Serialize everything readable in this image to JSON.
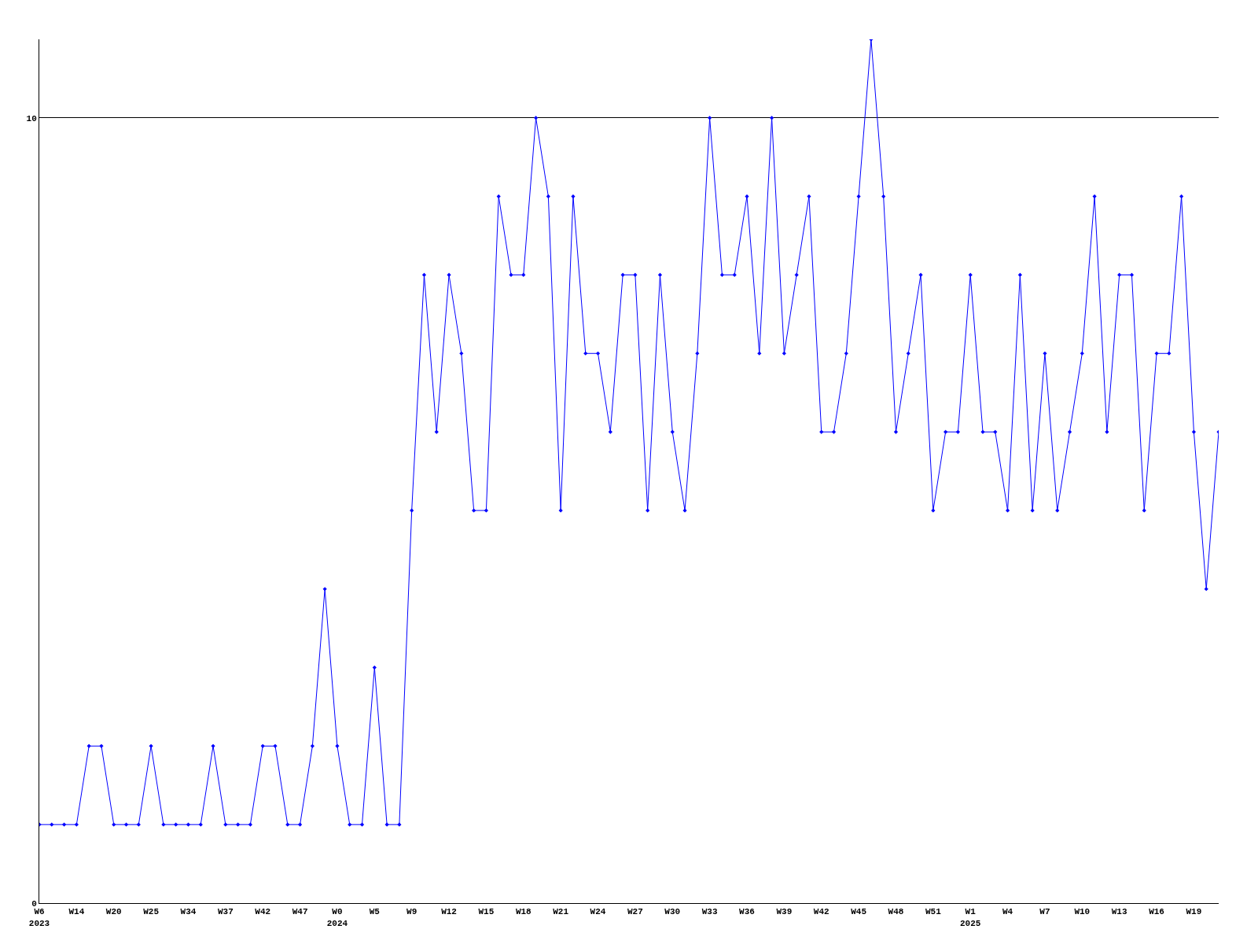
{
  "chart_data": {
    "type": "line",
    "categories": [
      "W6\n2023",
      null,
      null,
      "W14",
      null,
      null,
      "W20",
      null,
      null,
      "W25",
      null,
      null,
      "W34",
      null,
      null,
      "W37",
      null,
      null,
      "W42",
      null,
      null,
      "W47",
      null,
      null,
      "W0\n2024",
      null,
      null,
      "W5",
      null,
      null,
      "W9",
      null,
      null,
      "W12",
      null,
      null,
      "W15",
      null,
      null,
      "W18",
      null,
      null,
      "W21",
      null,
      null,
      "W24",
      null,
      null,
      "W27",
      null,
      null,
      "W30",
      null,
      null,
      "W33",
      null,
      null,
      "W36",
      null,
      null,
      "W39",
      null,
      null,
      "W42",
      null,
      null,
      "W45",
      null,
      null,
      "W48",
      null,
      null,
      "W51",
      null,
      null,
      "W1\n2025",
      null,
      null,
      "W4",
      null,
      null,
      "W7",
      null,
      null,
      "W10",
      null,
      null,
      "W13",
      null,
      null,
      "W16",
      null,
      null,
      "W19",
      null,
      null
    ],
    "series": [
      {
        "color": "#0000ff",
        "values": [
          1,
          1,
          1,
          1,
          2,
          2,
          1,
          1,
          1,
          2,
          1,
          1,
          1,
          1,
          2,
          1,
          1,
          1,
          2,
          2,
          1,
          1,
          2,
          4,
          2,
          1,
          1,
          3,
          1,
          1,
          5,
          8,
          6,
          8,
          7,
          5,
          5,
          9,
          8,
          8,
          10,
          9,
          5,
          9,
          7,
          7,
          6,
          8,
          8,
          5,
          8,
          6,
          5,
          7,
          10,
          8,
          8,
          9,
          7,
          10,
          7,
          8,
          9,
          6,
          6,
          7,
          9,
          11,
          9,
          6,
          7,
          8,
          5,
          6,
          6,
          8,
          6,
          6,
          5,
          8,
          5,
          7,
          5,
          6,
          7,
          9,
          6,
          8,
          8,
          5,
          7,
          7,
          9,
          6,
          4,
          6
        ]
      }
    ],
    "ylim": [
      0,
      11
    ],
    "yticks": [
      0,
      10
    ],
    "grid": "y",
    "marker": "diamond",
    "line_style": "solid"
  }
}
